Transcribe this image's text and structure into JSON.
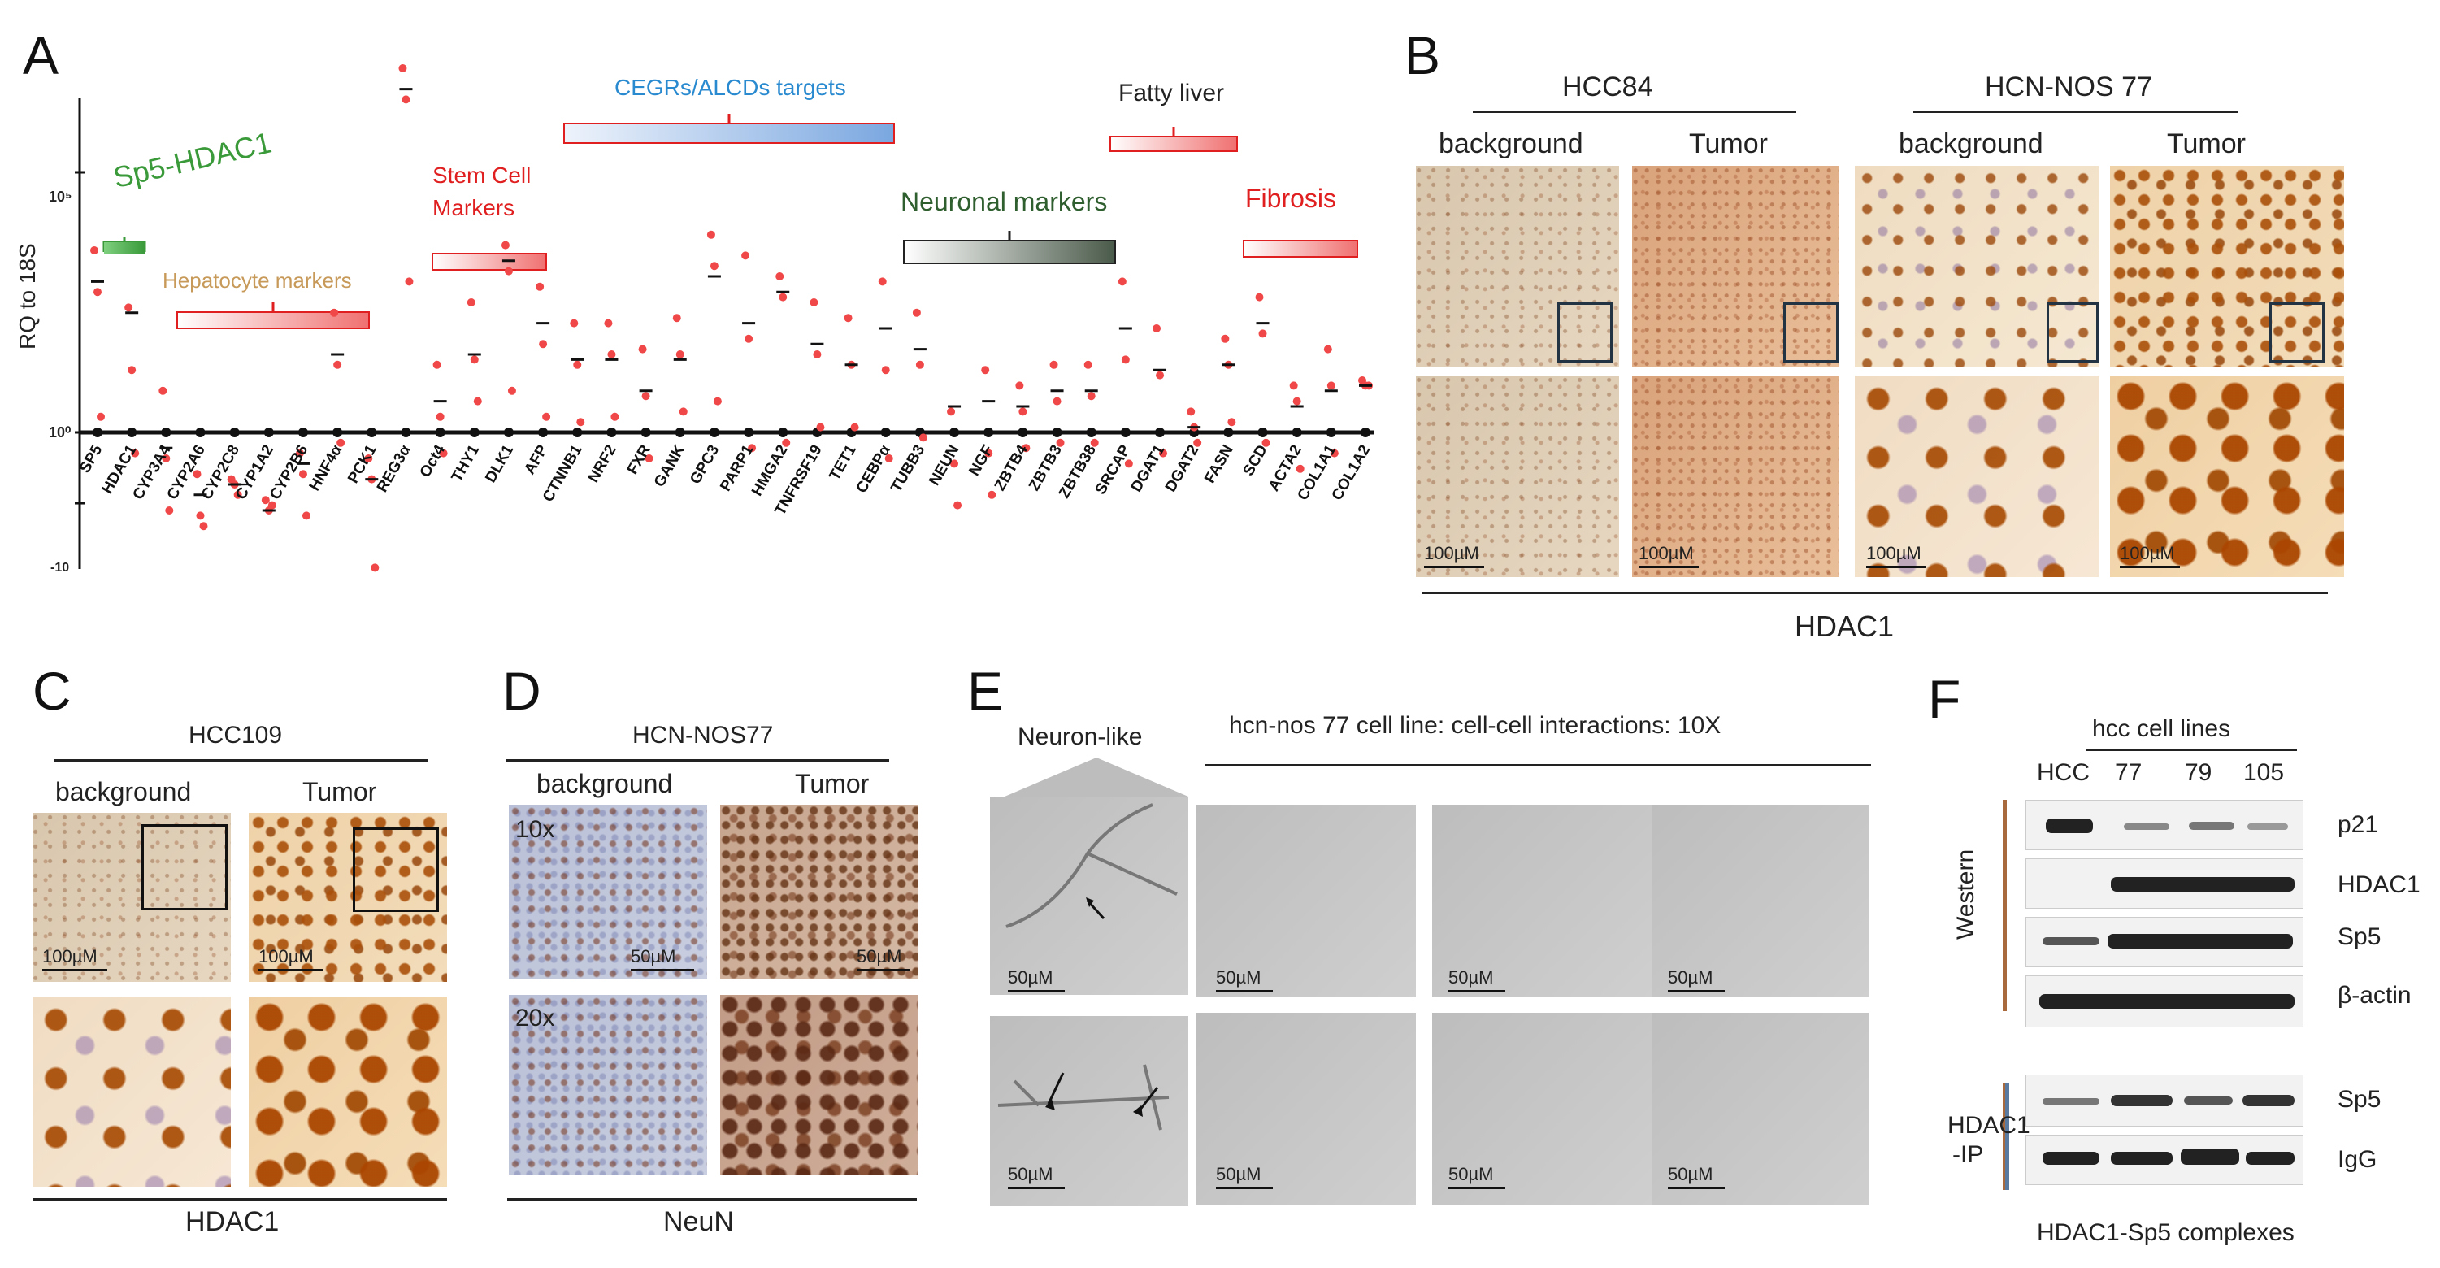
{
  "panels": {
    "A": "A",
    "B": "B",
    "C": "C",
    "D": "D",
    "E": "E",
    "F": "F"
  },
  "panelA": {
    "groups": [
      {
        "label": "Sp5-HDAC1",
        "color": "#3a9a3a"
      },
      {
        "label": "Hepatocyte markers",
        "color": "#c79a5a"
      },
      {
        "label": "Stem Cell",
        "color": "#e02020"
      },
      {
        "label": "Markers",
        "color": "#e02020"
      },
      {
        "label": "CEGRs/ALCDs targets",
        "color": "#2a8ad0"
      },
      {
        "label": "Neuronal markers",
        "color": "#2f5e2f"
      },
      {
        "label": "Fatty liver",
        "color": "#222222"
      },
      {
        "label": "Fibrosis",
        "color": "#e02020"
      }
    ],
    "ylabel": "RQ to 18S",
    "yticks": [
      "10⁵",
      "10⁰",
      "-10"
    ]
  },
  "chart_data": {
    "type": "scatter",
    "ylabel": "RQ to 18S",
    "yscale": "log",
    "categories": [
      "SP5",
      "HDAC1",
      "CYP3A4",
      "CYP2A6",
      "CYP2C8",
      "CYP1A2",
      "CYP2B6",
      "HNF4α",
      "PCK1",
      "REG3α",
      "Oct4",
      "THY1",
      "DLK1",
      "AFP",
      "CTNNB1",
      "NRF2",
      "FXR",
      "GANK",
      "GPC3",
      "PARP1",
      "HMGA2",
      "TNFRSF19",
      "TET1",
      "CEBPα",
      "TUBB3",
      "NEUN",
      "NGF",
      "ZBTB4",
      "ZBTB3",
      "ZBTB38",
      "SRCAP",
      "DGAT1",
      "DGAT2",
      "FASN",
      "SCD",
      "ACTA2",
      "COL1A1",
      "COL1A2"
    ],
    "series": [
      {
        "values": [
          2.9,
          2.3,
          -0.3,
          -1.2,
          -1.0,
          -1.5,
          -0.6,
          1.5,
          -0.9,
          6.6,
          0.6,
          1.5,
          3.3,
          2.1,
          1.4,
          1.4,
          0.8,
          1.4,
          3.0,
          2.1,
          2.7,
          1.7,
          1.3,
          2.0,
          1.6,
          0.5,
          0.6,
          0.5,
          0.8,
          0.8,
          2.0,
          1.2,
          0.1,
          1.3,
          2.1,
          0.5,
          0.8,
          0.9
        ],
        "points": [
          [
            3.5,
            2.7,
            0.3
          ],
          [
            2.4,
            1.2,
            -0.4
          ],
          [
            0.8,
            -0.5,
            -1.5
          ],
          [
            -0.8,
            -1.6,
            -1.8
          ],
          [
            -0.9,
            -1.0,
            -1.2
          ],
          [
            -1.3,
            -1.5,
            -1.4
          ],
          [
            -0.4,
            -0.8,
            -1.6
          ],
          [
            2.3,
            1.3,
            -0.2
          ],
          [
            -0.5,
            -0.9,
            -2.6
          ],
          [
            7.0,
            6.4,
            2.9
          ],
          [
            1.3,
            0.3,
            -0.4
          ],
          [
            2.5,
            1.4,
            0.6
          ],
          [
            3.6,
            3.1,
            0.8
          ],
          [
            2.8,
            1.7,
            0.3
          ],
          [
            2.1,
            1.3,
            0.2
          ],
          [
            2.1,
            1.5,
            0.3
          ],
          [
            1.6,
            0.7,
            -0.5
          ],
          [
            2.2,
            1.5,
            0.4
          ],
          [
            3.8,
            3.2,
            0.6
          ],
          [
            3.4,
            1.8,
            -0.3
          ],
          [
            3.0,
            2.6,
            -0.2
          ],
          [
            2.5,
            1.5,
            0.1
          ],
          [
            2.2,
            1.3,
            0.1
          ],
          [
            2.9,
            1.2,
            -0.5
          ],
          [
            2.3,
            1.3,
            -0.1
          ],
          [
            0.4,
            -0.6,
            -1.4
          ],
          [
            1.2,
            -0.4,
            -1.2
          ],
          [
            0.9,
            0.4,
            -0.3
          ],
          [
            1.3,
            0.6,
            -0.2
          ],
          [
            1.3,
            0.7,
            -0.2
          ],
          [
            2.9,
            1.4,
            -0.6
          ],
          [
            2.0,
            1.1,
            -0.4
          ],
          [
            0.4,
            0.1,
            -0.2
          ],
          [
            1.8,
            1.3,
            0.2
          ],
          [
            2.6,
            1.9,
            -0.2
          ],
          [
            0.9,
            0.6,
            -0.7
          ],
          [
            1.6,
            0.9,
            -0.4
          ],
          [
            1.0,
            0.9,
            0.9
          ]
        ]
      }
    ]
  },
  "panelB": {
    "groups": [
      "HCC84",
      "HCN-NOS 77"
    ],
    "columns": [
      "background",
      "Tumor",
      "background",
      "Tumor"
    ],
    "scale": "100µM",
    "caption": "HDAC1"
  },
  "panelC": {
    "group": "HCC109",
    "columns": [
      "background",
      "Tumor"
    ],
    "scale": "100µM",
    "caption": "HDAC1"
  },
  "panelD": {
    "group": "HCN-NOS77",
    "columns": [
      "background",
      "Tumor"
    ],
    "mags": [
      "10x",
      "20x"
    ],
    "scale": "50µM",
    "caption": "NeuN"
  },
  "panelE": {
    "neuron_label": "Neuron-like",
    "title": "hcn-nos 77 cell line: cell-cell interactions: 10X",
    "scale": "50µM"
  },
  "panelF": {
    "header": "hcc cell lines",
    "lanes": [
      "HCC",
      "77",
      "79",
      "105"
    ],
    "western_label": "Western",
    "ip_label_1": "HDAC1",
    "ip_label_2": "-IP",
    "blots": [
      "p21",
      "HDAC1",
      "Sp5",
      "β-actin"
    ],
    "ip_blots": [
      "Sp5",
      "IgG"
    ],
    "caption": "HDAC1-Sp5 complexes",
    "western_bar_color": "#a86a3c",
    "ip_bar_color": "#5a7aa0"
  }
}
